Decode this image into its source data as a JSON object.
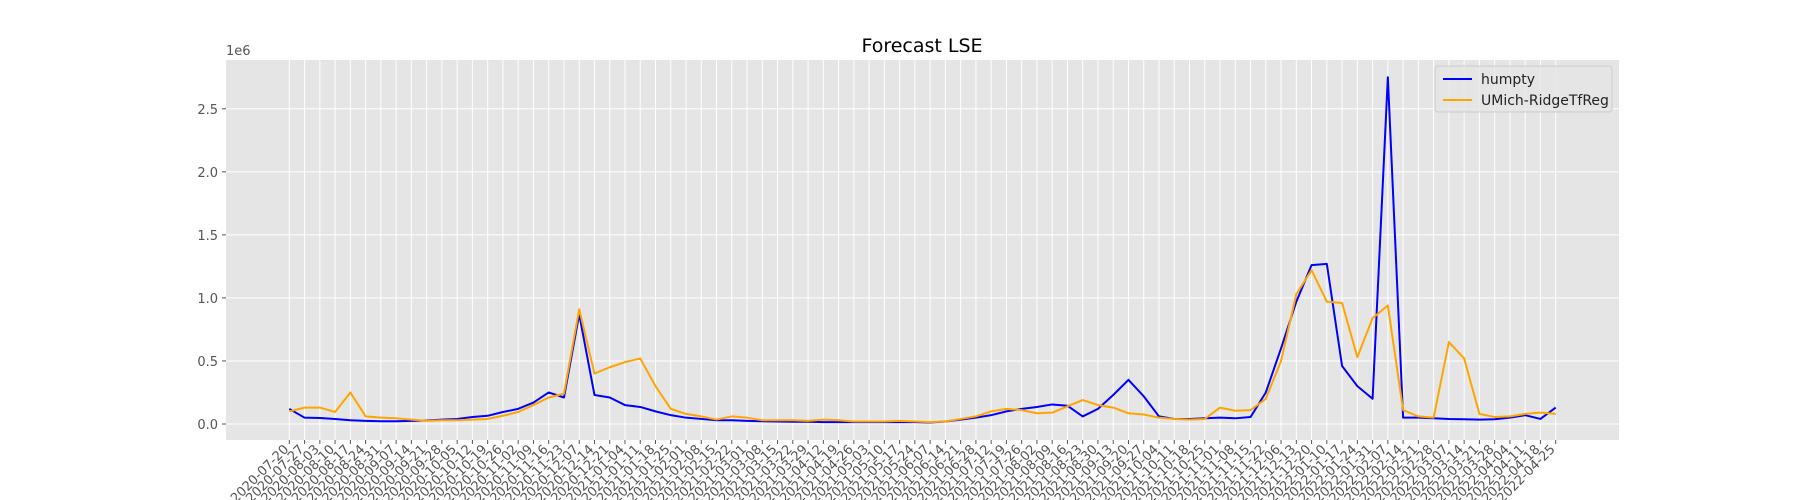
{
  "chart_data": {
    "type": "line",
    "title": "Forecast LSE",
    "y_offset_label": "1e6",
    "legend_loc": "upper right",
    "grid": true,
    "ylim": [
      -127000,
      2887000
    ],
    "yticks": [
      {
        "value": 0,
        "label": "0.0"
      },
      {
        "value": 500000,
        "label": "0.5"
      },
      {
        "value": 1000000,
        "label": "1.0"
      },
      {
        "value": 1500000,
        "label": "1.5"
      },
      {
        "value": 2000000,
        "label": "2.0"
      },
      {
        "value": 2500000,
        "label": "2.5"
      }
    ],
    "categories": [
      "2020-07-20",
      "2020-07-27",
      "2020-08-03",
      "2020-08-10",
      "2020-08-17",
      "2020-08-24",
      "2020-08-31",
      "2020-09-07",
      "2020-09-14",
      "2020-09-21",
      "2020-09-28",
      "2020-10-05",
      "2020-10-12",
      "2020-10-19",
      "2020-10-26",
      "2020-11-02",
      "2020-11-09",
      "2020-11-16",
      "2020-11-23",
      "2020-12-07",
      "2020-12-14",
      "2020-12-21",
      "2021-01-04",
      "2021-01-11",
      "2021-01-18",
      "2021-01-25",
      "2021-02-01",
      "2021-02-08",
      "2021-02-15",
      "2021-02-22",
      "2021-03-01",
      "2021-03-08",
      "2021-03-15",
      "2021-03-22",
      "2021-03-29",
      "2021-04-12",
      "2021-04-19",
      "2021-04-26",
      "2021-05-03",
      "2021-05-10",
      "2021-05-17",
      "2021-05-24",
      "2021-06-07",
      "2021-06-14",
      "2021-06-21",
      "2021-06-28",
      "2021-07-12",
      "2021-07-19",
      "2021-07-26",
      "2021-08-02",
      "2021-08-09",
      "2021-08-16",
      "2021-08-23",
      "2021-08-30",
      "2021-09-13",
      "2021-09-20",
      "2021-09-27",
      "2021-10-04",
      "2021-10-11",
      "2021-10-18",
      "2021-10-25",
      "2021-11-01",
      "2021-11-08",
      "2021-11-15",
      "2021-11-22",
      "2021-12-06",
      "2021-12-13",
      "2021-12-20",
      "2022-01-10",
      "2022-01-17",
      "2022-01-24",
      "2022-01-31",
      "2022-02-07",
      "2022-02-14",
      "2022-02-21",
      "2022-02-28",
      "2022-03-07",
      "2022-03-14",
      "2022-03-21",
      "2022-03-28",
      "2022-04-04",
      "2022-04-11",
      "2022-04-18",
      "2022-04-25"
    ],
    "series": [
      {
        "name": "humpty",
        "color": "blue",
        "values": [
          120000,
          50000,
          48000,
          40000,
          30000,
          25000,
          22000,
          22000,
          25000,
          28000,
          35000,
          40000,
          55000,
          65000,
          95000,
          120000,
          170000,
          250000,
          210000,
          870000,
          230000,
          210000,
          150000,
          135000,
          100000,
          70000,
          50000,
          40000,
          30000,
          30000,
          25000,
          22000,
          20000,
          18000,
          18000,
          15000,
          15000,
          15000,
          15000,
          15000,
          15000,
          15000,
          12000,
          20000,
          35000,
          50000,
          70000,
          100000,
          120000,
          135000,
          155000,
          145000,
          60000,
          120000,
          230000,
          350000,
          220000,
          60000,
          40000,
          40000,
          45000,
          50000,
          45000,
          55000,
          250000,
          600000,
          970000,
          1260000,
          1270000,
          460000,
          300000,
          200000,
          2750000,
          50000,
          50000,
          45000,
          40000,
          38000,
          35000,
          38000,
          50000,
          70000,
          40000,
          130000
        ]
      },
      {
        "name": "UMich-RidgeTfReg",
        "color": "orange",
        "values": [
          100000,
          130000,
          130000,
          95000,
          250000,
          60000,
          50000,
          45000,
          35000,
          25000,
          30000,
          30000,
          35000,
          40000,
          65000,
          95000,
          150000,
          210000,
          240000,
          910000,
          400000,
          450000,
          490000,
          520000,
          300000,
          120000,
          80000,
          60000,
          35000,
          60000,
          50000,
          30000,
          30000,
          30000,
          25000,
          35000,
          30000,
          20000,
          20000,
          20000,
          25000,
          20000,
          15000,
          20000,
          40000,
          60000,
          100000,
          120000,
          110000,
          85000,
          90000,
          140000,
          190000,
          150000,
          130000,
          85000,
          75000,
          50000,
          40000,
          35000,
          40000,
          130000,
          105000,
          110000,
          200000,
          500000,
          1030000,
          1220000,
          970000,
          960000,
          530000,
          840000,
          940000,
          110000,
          60000,
          50000,
          650000,
          520000,
          80000,
          55000,
          60000,
          80000,
          90000,
          80000
        ]
      }
    ]
  }
}
